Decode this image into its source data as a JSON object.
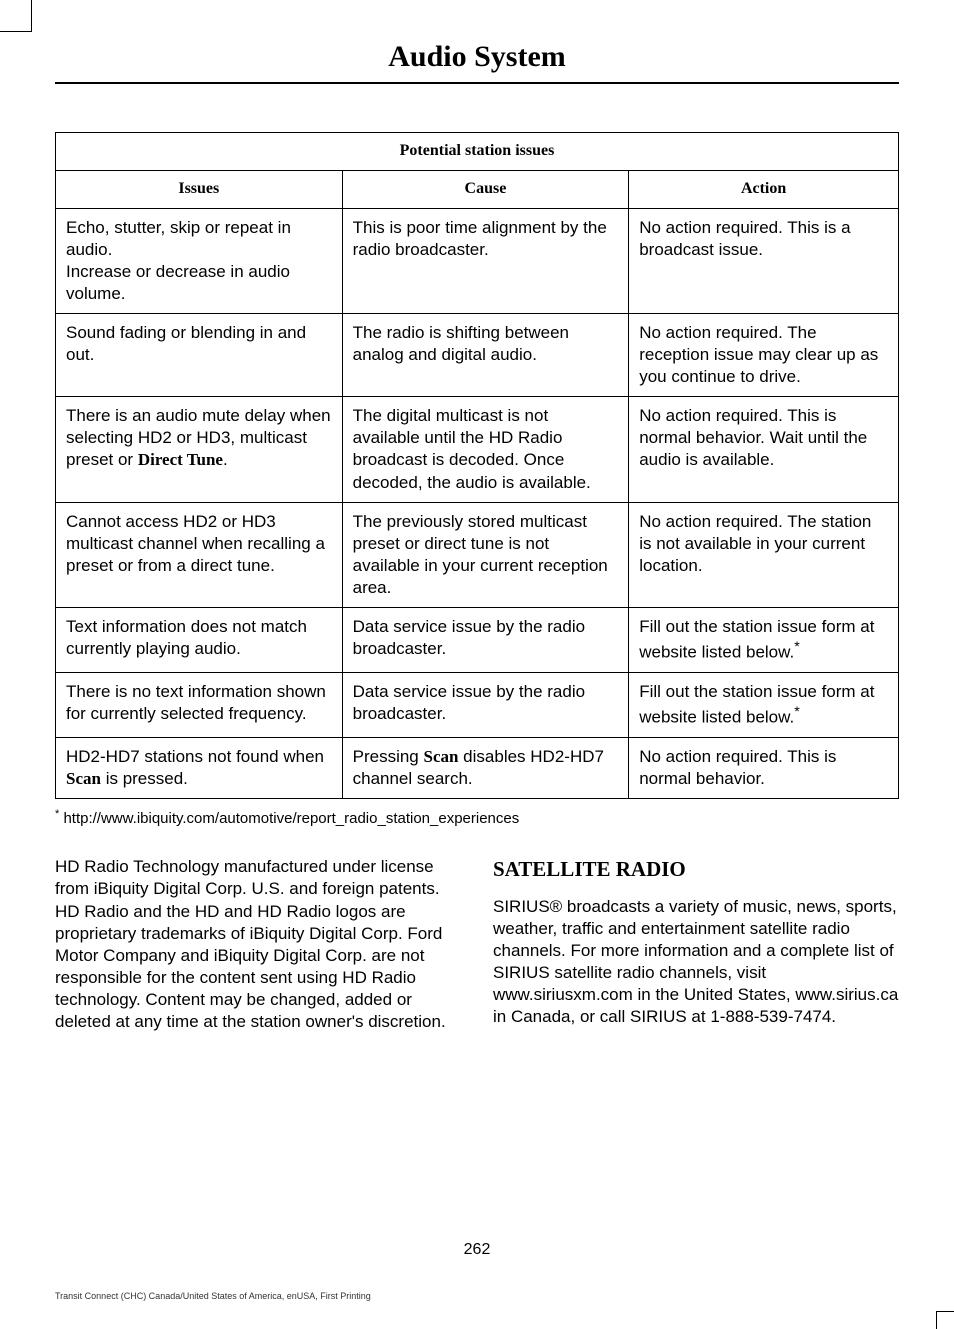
{
  "page_title": "Audio System",
  "table": {
    "caption": "Potential station issues",
    "headers": {
      "issues": "Issues",
      "cause": "Cause",
      "action": "Action"
    },
    "rows": [
      {
        "issues": "Echo, stutter, skip or repeat in audio.\nIncrease or decrease in audio volume.",
        "cause": "This is poor time alignment by the radio broadcaster.",
        "action": "No action required. This is a broadcast issue."
      },
      {
        "issues": "Sound fading or blending in and out.",
        "cause": "The radio is shifting between analog and digital audio.",
        "action": "No action required. The reception issue may clear up as you continue to drive."
      },
      {
        "issues_html": "There is an audio mute delay when selecting HD2 or HD3, multicast preset or <span class=\"bold-serif\">Direct Tune</span>.",
        "cause": "The digital multicast is not available until the HD Radio broadcast is decoded. Once decoded, the audio is available.",
        "action": "No action required. This is normal behavior. Wait until the audio is available."
      },
      {
        "issues": "Cannot access HD2 or HD3 multicast channel when recalling a preset or from a direct tune.",
        "cause": "The previously stored multicast preset or direct tune is not available in your current reception area.",
        "action": "No action required. The station is not available in your current location."
      },
      {
        "issues": "Text information does not match currently playing audio.",
        "cause": "Data service issue by the radio broadcaster.",
        "action_html": "Fill out the station issue form at website listed below.<sup>*</sup>"
      },
      {
        "issues": "There is no text information shown for currently selected frequency.",
        "cause": "Data service issue by the radio broadcaster.",
        "action_html": "Fill out the station issue form at website listed below.<sup>*</sup>"
      },
      {
        "issues_html": "HD2-HD7 stations not found when <span class=\"bold-serif\">Scan</span> is pressed.",
        "cause_html": "Pressing <span class=\"bold-serif\">Scan</span> disables HD2-HD7 channel search.",
        "action": "No action required. This is normal behavior."
      }
    ]
  },
  "footnote": "http://www.ibiquity.com/automotive/report_radio_station_experiences",
  "left_para": "HD Radio Technology manufactured under license from iBiquity Digital Corp. U.S. and foreign patents. HD Radio and the HD and HD Radio logos are proprietary trademarks of iBiquity Digital Corp. Ford Motor Company and iBiquity Digital Corp. are not responsible for the content sent using HD Radio technology. Content may be changed, added or deleted at any time at the station owner's discretion.",
  "right_heading": "SATELLITE RADIO",
  "right_para": "SIRIUS® broadcasts a variety of music, news, sports, weather, traffic and entertainment satellite radio channels. For more information and a complete list of SIRIUS satellite radio channels, visit www.siriusxm.com in the United States, www.sirius.ca in Canada, or call SIRIUS at 1-888-539-7474.",
  "page_number": "262",
  "footer": "Transit Connect (CHC) Canada/United States of America, enUSA, First Printing"
}
